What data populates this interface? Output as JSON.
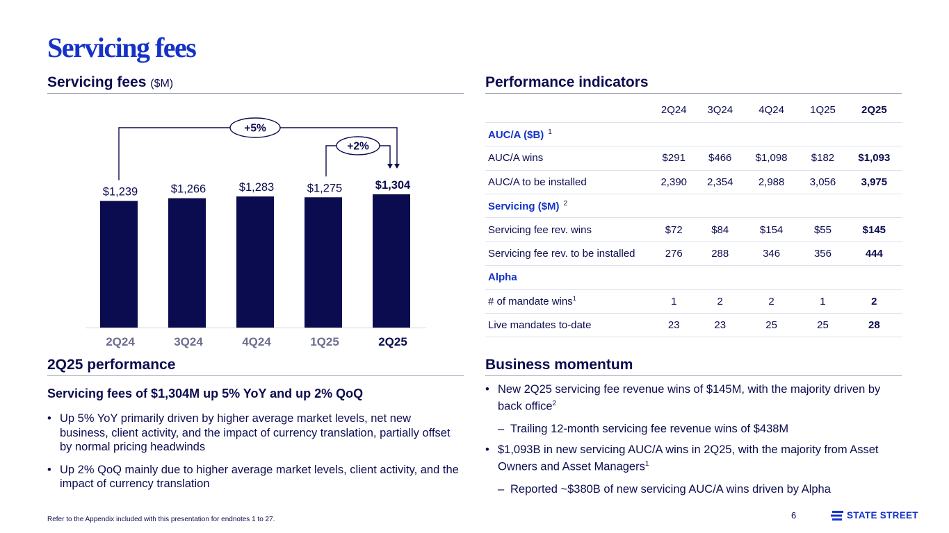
{
  "page": {
    "title": "Servicing fees",
    "page_number": "6",
    "footnote": "Refer to the Appendix included with this presentation for endnotes 1 to 27.",
    "logo_text": "STATE STREET"
  },
  "colors": {
    "bar": "#0b0c4f",
    "accent": "#1432c8",
    "text": "#0b0c4f",
    "rule": "#9aa0b8",
    "muted": "#6b6f8e"
  },
  "chart_section": {
    "title": "Servicing fees",
    "unit": "($M)"
  },
  "chart_data": {
    "type": "bar",
    "title": "Servicing fees ($M)",
    "categories": [
      "2Q24",
      "3Q24",
      "4Q24",
      "1Q25",
      "2Q25"
    ],
    "values": [
      1239,
      1266,
      1283,
      1275,
      1304
    ],
    "value_labels": [
      "$1,239",
      "$1,266",
      "$1,283",
      "$1,275",
      "$1,304"
    ],
    "highlight_index": 4,
    "ylim": [
      0,
      1400
    ],
    "annotations": [
      {
        "label": "+5%",
        "from": "2Q24",
        "to": "2Q25"
      },
      {
        "label": "+2%",
        "from": "1Q25",
        "to": "2Q25"
      }
    ]
  },
  "perf": {
    "title": "Performance indicators",
    "periods": [
      "2Q24",
      "3Q24",
      "4Q24",
      "1Q25",
      "2Q25"
    ],
    "rows": [
      {
        "type": "cat",
        "label": "AUC/A ($B)",
        "note": "1"
      },
      {
        "type": "data",
        "label": "AUC/A wins",
        "values": [
          "$291",
          "$466",
          "$1,098",
          "$182",
          "$1,093"
        ]
      },
      {
        "type": "data",
        "label": "AUC/A to be installed",
        "values": [
          "2,390",
          "2,354",
          "2,988",
          "3,056",
          "3,975"
        ]
      },
      {
        "type": "cat",
        "label": "Servicing ($M)",
        "note": "2"
      },
      {
        "type": "data",
        "label": "Servicing fee rev. wins",
        "values": [
          "$72",
          "$84",
          "$154",
          "$55",
          "$145"
        ]
      },
      {
        "type": "data",
        "label": "Servicing fee rev. to be installed",
        "values": [
          "276",
          "288",
          "346",
          "356",
          "444"
        ]
      },
      {
        "type": "cat",
        "label": "Alpha"
      },
      {
        "type": "data",
        "label": "# of mandate wins",
        "note": "1",
        "values": [
          "1",
          "2",
          "2",
          "1",
          "2"
        ]
      },
      {
        "type": "data",
        "label": "Live mandates to-date",
        "values": [
          "23",
          "23",
          "25",
          "25",
          "28"
        ]
      }
    ]
  },
  "performance": {
    "title": "2Q25 performance",
    "subtitle": "Servicing fees of $1,304M up 5% YoY and up 2% QoQ",
    "bullets": [
      "Up 5% YoY primarily driven by higher average market levels, net new business, client activity, and the impact of currency translation, partially offset by normal pricing headwinds",
      "Up 2% QoQ mainly due to higher average market levels, client activity, and the impact of currency translation"
    ]
  },
  "momentum": {
    "title": "Business momentum",
    "b1": "New 2Q25 servicing fee revenue wins of $145M, with the majority driven by back office",
    "b1_note": "2",
    "b1_sub": "Trailing 12-month servicing fee revenue wins of $438M",
    "b2": "$1,093B in new servicing AUC/A wins in 2Q25, with the majority from Asset Owners and Asset Managers",
    "b2_note": "1",
    "b2_sub": "Reported ~$380B of new servicing AUC/A wins driven by Alpha"
  }
}
